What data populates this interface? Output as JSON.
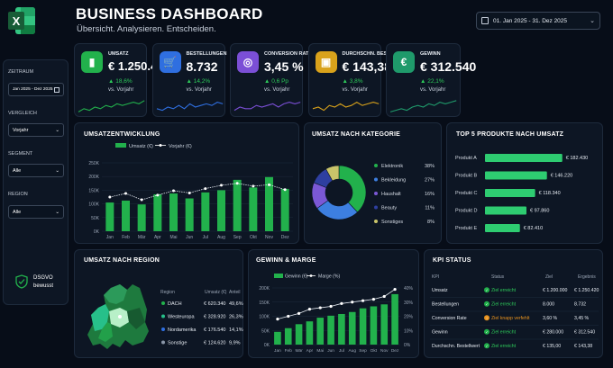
{
  "header": {
    "title": "BUSINESS DASHBOARD",
    "subtitle": "Übersicht. Analysieren. Entscheiden.",
    "date_range": "01. Jan 2025 - 31. Dez 2025"
  },
  "sidebar": {
    "zeitraum_label": "ZEITRAUM",
    "zeitraum_value": "Jan 2025 - Dez 2025",
    "vergleich_label": "VERGLEICH",
    "vergleich_value": "Vorjahr",
    "segment_label": "SEGMENT",
    "segment_value": "Alle",
    "region_label": "REGION",
    "region_value": "Alle",
    "badge_line1": "DSGVO",
    "badge_line2": "bewusst"
  },
  "kpis": [
    {
      "label": "UMSATZ",
      "value": "€ 1.250.420",
      "delta": "18,6%",
      "compare": "vs. Vorjahr",
      "color": "#22b14c",
      "icon": "bar-chart-icon"
    },
    {
      "label": "BESTELLUNGEN",
      "value": "8.732",
      "delta": "14,2%",
      "compare": "vs. Vorjahr",
      "color": "#2f6fe0",
      "icon": "cart-icon"
    },
    {
      "label": "CONVERSION RATE",
      "value": "3,45 %",
      "delta": "0,6 Pp",
      "compare": "vs. Vorjahr",
      "color": "#7b4fd6",
      "icon": "target-icon"
    },
    {
      "label": "DURCHSCHN. BESTELLWERT",
      "value": "€ 143,38",
      "delta": "3,8%",
      "compare": "vs. Vorjahr",
      "color": "#d9a21b",
      "icon": "wallet-icon"
    },
    {
      "label": "GEWINN",
      "value": "€ 312.540",
      "delta": "22,1%",
      "compare": "vs. Vorjahr",
      "color": "#1f9a6b",
      "icon": "euro-icon"
    }
  ],
  "umsatz": {
    "title": "UMSATZENTWICKLUNG",
    "legend_bar": "Umsatz (€)",
    "legend_line": "Vorjahr (€)"
  },
  "kategorie": {
    "title": "UMSATZ NACH KATEGORIE",
    "items": [
      {
        "name": "Elektronik",
        "pct": "38%",
        "value": 38,
        "color": "#22b14c"
      },
      {
        "name": "Bekleidung",
        "pct": "27%",
        "value": 27,
        "color": "#3d7fe0"
      },
      {
        "name": "Haushalt",
        "pct": "16%",
        "value": 16,
        "color": "#7b58d6"
      },
      {
        "name": "Beauty",
        "pct": "11%",
        "value": 11,
        "color": "#2e3fa0"
      },
      {
        "name": "Sonstiges",
        "pct": "8%",
        "value": 8,
        "color": "#c9c46a"
      }
    ]
  },
  "top5": {
    "title": "TOP 5 PRODUKTE NACH UMSATZ",
    "items": [
      {
        "name": "Produkt A",
        "value_label": "€ 182.430",
        "value": 182430
      },
      {
        "name": "Produkt B",
        "value_label": "€ 146.220",
        "value": 146220
      },
      {
        "name": "Produkt C",
        "value_label": "€ 118.340",
        "value": 118340
      },
      {
        "name": "Produkt D",
        "value_label": "€ 97.860",
        "value": 97860
      },
      {
        "name": "Produkt E",
        "value_label": "€ 82.410",
        "value": 82410
      }
    ]
  },
  "region": {
    "title": "UMSATZ NACH REGION",
    "col_region": "Region",
    "col_umsatz": "Umsatz (€)",
    "col_anteil": "Anteil",
    "rows": [
      {
        "name": "DACH",
        "umsatz": "€ 620.340",
        "anteil": "49,6%",
        "color": "#22b14c"
      },
      {
        "name": "Westeuropa",
        "umsatz": "€ 328.920",
        "anteil": "26,3%",
        "color": "#27c08a"
      },
      {
        "name": "Nordamerika",
        "umsatz": "€ 176.540",
        "anteil": "14,1%",
        "color": "#2f6fe0"
      },
      {
        "name": "Sonstige",
        "umsatz": "€ 124.620",
        "anteil": "9,9%",
        "color": "#8a96a8"
      }
    ]
  },
  "gewinn": {
    "title": "GEWINN & MARGE",
    "legend_bar": "Gewinn (€)",
    "legend_line": "Marge (%)"
  },
  "kpi_status": {
    "title": "KPI STATUS",
    "headers": [
      "KPI",
      "Status",
      "Ziel",
      "Ergebnis"
    ],
    "rows": [
      {
        "kpi": "Umsatz",
        "status": "Ziel erreicht",
        "ok": true,
        "ziel": "€ 1.200.000",
        "ergebnis": "€ 1.250.420"
      },
      {
        "kpi": "Bestellungen",
        "status": "Ziel erreicht",
        "ok": true,
        "ziel": "8.000",
        "ergebnis": "8.732"
      },
      {
        "kpi": "Conversion Rate",
        "status": "Ziel knapp verfehlt",
        "ok": false,
        "ziel": "3,60 %",
        "ergebnis": "3,45 %"
      },
      {
        "kpi": "Gewinn",
        "status": "Ziel erreicht",
        "ok": true,
        "ziel": "€ 280.000",
        "ergebnis": "€ 312.540"
      },
      {
        "kpi": "Durchschn. Bestellwert",
        "status": "Ziel erreicht",
        "ok": true,
        "ziel": "€ 135,00",
        "ergebnis": "€ 143,38"
      }
    ]
  },
  "chart_data": [
    {
      "type": "bar",
      "title": "UMSATZENTWICKLUNG",
      "categories": [
        "Jan",
        "Feb",
        "Mär",
        "Apr",
        "Mai",
        "Jun",
        "Jul",
        "Aug",
        "Sep",
        "Okt",
        "Nov",
        "Dez"
      ],
      "series": [
        {
          "name": "Umsatz (€)",
          "type": "bar",
          "values": [
            105000,
            112000,
            98000,
            135000,
            138000,
            120000,
            142000,
            150000,
            188000,
            160000,
            198000,
            155000
          ]
        },
        {
          "name": "Vorjahr (€)",
          "type": "line",
          "values": [
            125000,
            138000,
            115000,
            132000,
            148000,
            140000,
            156000,
            168000,
            175000,
            165000,
            170000,
            152000
          ]
        }
      ],
      "yticks": [
        "0K",
        "50K",
        "100K",
        "150K",
        "200K",
        "250K"
      ],
      "ylim": [
        0,
        250000
      ],
      "legend": "top"
    },
    {
      "type": "pie",
      "title": "UMSATZ NACH KATEGORIE",
      "categories": [
        "Elektronik",
        "Bekleidung",
        "Haushalt",
        "Beauty",
        "Sonstiges"
      ],
      "values": [
        38,
        27,
        16,
        11,
        8
      ]
    },
    {
      "type": "bar",
      "title": "TOP 5 PRODUKTE NACH UMSATZ",
      "orientation": "horizontal",
      "categories": [
        "Produkt A",
        "Produkt B",
        "Produkt C",
        "Produkt D",
        "Produkt E"
      ],
      "values": [
        182430,
        146220,
        118340,
        97860,
        82410
      ]
    },
    {
      "type": "bar",
      "title": "GEWINN & MARGE",
      "categories": [
        "Jan",
        "Feb",
        "Mär",
        "Apr",
        "Mai",
        "Jun",
        "Jul",
        "Aug",
        "Sep",
        "Okt",
        "Nov",
        "Dez"
      ],
      "series": [
        {
          "name": "Gewinn (€)",
          "type": "bar",
          "values": [
            45000,
            58000,
            72000,
            82000,
            95000,
            102000,
            108000,
            115000,
            128000,
            135000,
            142000,
            178000
          ]
        },
        {
          "name": "Marge (%)",
          "type": "line",
          "values": [
            18,
            20,
            22,
            25,
            26,
            27,
            29,
            30,
            31,
            32,
            34,
            39
          ]
        }
      ],
      "yticks_left": [
        "0K",
        "50K",
        "100K",
        "150K",
        "200K"
      ],
      "ylim_left": [
        0,
        200000
      ],
      "yticks_right": [
        "0%",
        "10%",
        "20%",
        "30%",
        "40%"
      ],
      "ylim_right": [
        0,
        40
      ],
      "legend": "top"
    }
  ]
}
